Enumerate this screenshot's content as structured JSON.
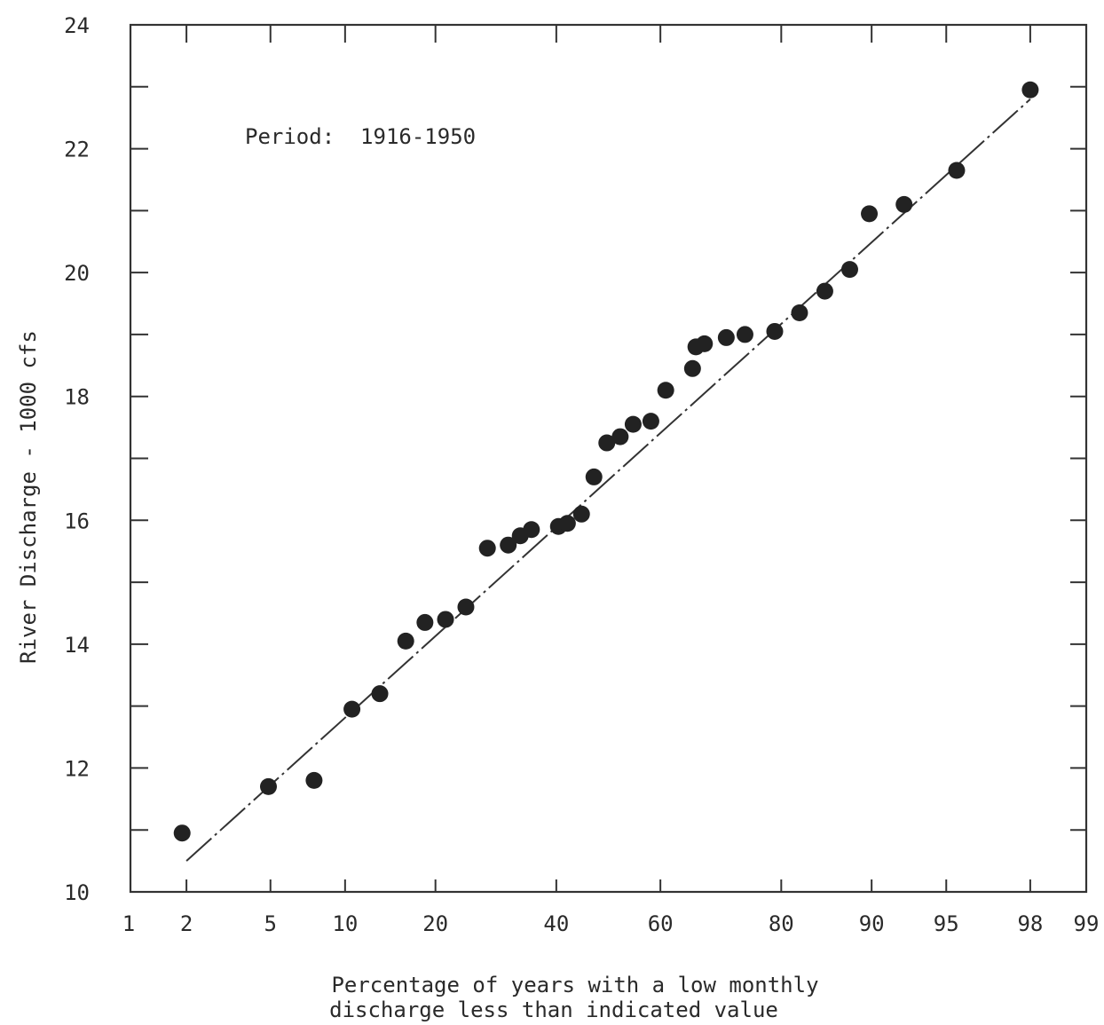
{
  "chart_data": {
    "type": "scatter",
    "title": "",
    "annotation": "Period:  1916-1950",
    "xlabel_lines": [
      "Percentage of years with a low monthly",
      "discharge less than indicated value"
    ],
    "ylabel": "River Discharge - 1000 cfs",
    "x_scale": "normal-probability",
    "xlim": [
      1,
      99
    ],
    "ylim": [
      10,
      24
    ],
    "x_ticks": [
      1,
      2,
      5,
      10,
      20,
      40,
      60,
      80,
      90,
      95,
      98,
      99
    ],
    "y_ticks": [
      10,
      12,
      14,
      16,
      18,
      20,
      22,
      24
    ],
    "y_minor_ticks": [
      11,
      13,
      15,
      17,
      19,
      21,
      23
    ],
    "grid": false,
    "colors": {
      "points": "#222222",
      "line": "#333333",
      "axes": "#333333"
    },
    "fit_line": {
      "x": [
        2,
        98
      ],
      "y": [
        10.5,
        22.8
      ]
    },
    "series": [
      {
        "x": [
          1.9,
          4.9,
          7.6,
          10.6,
          13.3,
          16.2,
          18.6,
          21.4,
          24.4,
          27.8,
          31.3,
          33.4,
          35.4,
          40.4,
          42.1,
          44.8,
          47.2,
          49.7,
          52.3,
          54.8,
          58.2,
          61.0,
          65.9,
          66.5,
          68.0,
          71.7,
          74.7,
          79.1,
          82.4,
          85.4,
          88.0,
          89.8,
          92.5,
          95.5,
          98.0
        ],
        "y": [
          10.95,
          11.7,
          11.8,
          12.95,
          13.2,
          14.05,
          14.35,
          14.4,
          14.6,
          15.55,
          15.6,
          15.75,
          15.85,
          15.9,
          15.95,
          16.1,
          16.7,
          17.25,
          17.35,
          17.55,
          17.6,
          18.1,
          18.45,
          18.8,
          18.85,
          18.95,
          19.0,
          19.05,
          19.35,
          19.7,
          20.05,
          20.95,
          21.1,
          21.65,
          22.95
        ]
      }
    ]
  }
}
